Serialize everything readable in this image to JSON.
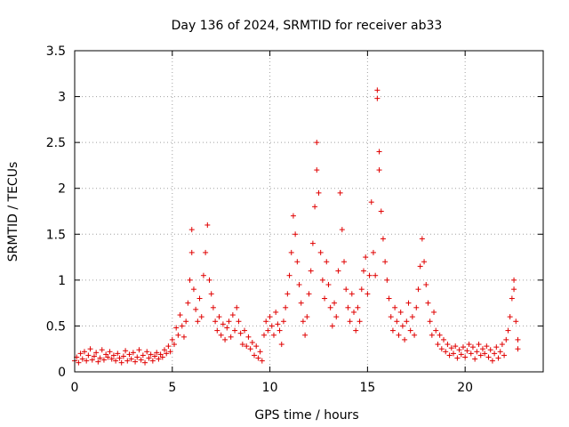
{
  "chart_data": {
    "type": "scatter",
    "title": "Day 136 of 2024, SRMTID for receiver ab33",
    "xlabel": "GPS time / hours",
    "ylabel": "SRMTID / TECUs",
    "xlim": [
      0,
      24
    ],
    "ylim": [
      0,
      3.5
    ],
    "x_ticks": [
      0,
      5,
      10,
      15,
      20
    ],
    "x_tick_labels": [
      "0",
      "5",
      "10",
      "15",
      "20"
    ],
    "y_ticks": [
      0,
      0.5,
      1,
      1.5,
      2,
      2.5,
      3,
      3.5
    ],
    "y_tick_labels": [
      "0",
      "0.5",
      "1",
      "1.5",
      "2",
      "2.5",
      "3",
      "3.5"
    ],
    "grid": true,
    "marker": "plus",
    "color": "#e00000",
    "series": [
      {
        "name": "SRMTID",
        "points": [
          [
            0.0,
            0.12
          ],
          [
            0.1,
            0.16
          ],
          [
            0.2,
            0.1
          ],
          [
            0.3,
            0.2
          ],
          [
            0.4,
            0.14
          ],
          [
            0.5,
            0.22
          ],
          [
            0.6,
            0.12
          ],
          [
            0.7,
            0.18
          ],
          [
            0.8,
            0.25
          ],
          [
            0.9,
            0.13
          ],
          [
            1.0,
            0.17
          ],
          [
            1.1,
            0.21
          ],
          [
            1.2,
            0.11
          ],
          [
            1.3,
            0.15
          ],
          [
            1.4,
            0.24
          ],
          [
            1.5,
            0.13
          ],
          [
            1.6,
            0.19
          ],
          [
            1.7,
            0.16
          ],
          [
            1.8,
            0.22
          ],
          [
            1.9,
            0.14
          ],
          [
            2.0,
            0.18
          ],
          [
            2.1,
            0.12
          ],
          [
            2.2,
            0.2
          ],
          [
            2.3,
            0.15
          ],
          [
            2.4,
            0.1
          ],
          [
            2.5,
            0.17
          ],
          [
            2.6,
            0.23
          ],
          [
            2.7,
            0.12
          ],
          [
            2.8,
            0.19
          ],
          [
            2.9,
            0.14
          ],
          [
            3.0,
            0.21
          ],
          [
            3.1,
            0.11
          ],
          [
            3.2,
            0.16
          ],
          [
            3.3,
            0.24
          ],
          [
            3.4,
            0.13
          ],
          [
            3.5,
            0.18
          ],
          [
            3.6,
            0.1
          ],
          [
            3.7,
            0.22
          ],
          [
            3.8,
            0.15
          ],
          [
            3.9,
            0.19
          ],
          [
            4.0,
            0.12
          ],
          [
            4.1,
            0.17
          ],
          [
            4.2,
            0.21
          ],
          [
            4.3,
            0.14
          ],
          [
            4.4,
            0.19
          ],
          [
            4.5,
            0.16
          ],
          [
            4.6,
            0.24
          ],
          [
            4.7,
            0.2
          ],
          [
            4.8,
            0.28
          ],
          [
            4.9,
            0.22
          ],
          [
            5.0,
            0.35
          ],
          [
            5.1,
            0.3
          ],
          [
            5.2,
            0.48
          ],
          [
            5.3,
            0.4
          ],
          [
            5.4,
            0.62
          ],
          [
            5.5,
            0.5
          ],
          [
            5.6,
            0.38
          ],
          [
            5.7,
            0.55
          ],
          [
            5.8,
            0.75
          ],
          [
            5.9,
            1.0
          ],
          [
            6.0,
            1.55
          ],
          [
            6.0,
            1.3
          ],
          [
            6.1,
            0.9
          ],
          [
            6.2,
            0.68
          ],
          [
            6.3,
            0.55
          ],
          [
            6.4,
            0.8
          ],
          [
            6.5,
            0.6
          ],
          [
            6.6,
            1.05
          ],
          [
            6.7,
            1.3
          ],
          [
            6.8,
            1.6
          ],
          [
            6.9,
            1.0
          ],
          [
            7.0,
            0.85
          ],
          [
            7.1,
            0.7
          ],
          [
            7.2,
            0.55
          ],
          [
            7.3,
            0.45
          ],
          [
            7.4,
            0.6
          ],
          [
            7.5,
            0.4
          ],
          [
            7.6,
            0.52
          ],
          [
            7.7,
            0.35
          ],
          [
            7.8,
            0.48
          ],
          [
            7.9,
            0.55
          ],
          [
            8.0,
            0.38
          ],
          [
            8.1,
            0.62
          ],
          [
            8.2,
            0.45
          ],
          [
            8.3,
            0.7
          ],
          [
            8.4,
            0.55
          ],
          [
            8.5,
            0.42
          ],
          [
            8.6,
            0.3
          ],
          [
            8.7,
            0.45
          ],
          [
            8.8,
            0.28
          ],
          [
            8.9,
            0.38
          ],
          [
            9.0,
            0.25
          ],
          [
            9.1,
            0.32
          ],
          [
            9.2,
            0.18
          ],
          [
            9.3,
            0.28
          ],
          [
            9.4,
            0.15
          ],
          [
            9.5,
            0.22
          ],
          [
            9.6,
            0.12
          ],
          [
            9.7,
            0.4
          ],
          [
            9.8,
            0.55
          ],
          [
            9.9,
            0.45
          ],
          [
            10.0,
            0.6
          ],
          [
            10.1,
            0.5
          ],
          [
            10.2,
            0.4
          ],
          [
            10.3,
            0.65
          ],
          [
            10.4,
            0.52
          ],
          [
            10.5,
            0.45
          ],
          [
            10.6,
            0.3
          ],
          [
            10.7,
            0.55
          ],
          [
            10.8,
            0.7
          ],
          [
            10.9,
            0.85
          ],
          [
            11.0,
            1.05
          ],
          [
            11.1,
            1.3
          ],
          [
            11.2,
            1.7
          ],
          [
            11.3,
            1.5
          ],
          [
            11.4,
            1.2
          ],
          [
            11.5,
            0.95
          ],
          [
            11.6,
            0.75
          ],
          [
            11.7,
            0.55
          ],
          [
            11.8,
            0.4
          ],
          [
            11.9,
            0.6
          ],
          [
            12.0,
            0.85
          ],
          [
            12.1,
            1.1
          ],
          [
            12.2,
            1.4
          ],
          [
            12.3,
            1.8
          ],
          [
            12.4,
            2.5
          ],
          [
            12.4,
            2.2
          ],
          [
            12.5,
            1.95
          ],
          [
            12.6,
            1.3
          ],
          [
            12.7,
            1.0
          ],
          [
            12.8,
            0.8
          ],
          [
            12.9,
            1.2
          ],
          [
            13.0,
            0.95
          ],
          [
            13.1,
            0.7
          ],
          [
            13.2,
            0.5
          ],
          [
            13.3,
            0.75
          ],
          [
            13.4,
            0.6
          ],
          [
            13.5,
            1.1
          ],
          [
            13.6,
            1.95
          ],
          [
            13.7,
            1.55
          ],
          [
            13.8,
            1.2
          ],
          [
            13.9,
            0.9
          ],
          [
            14.0,
            0.7
          ],
          [
            14.1,
            0.55
          ],
          [
            14.2,
            0.85
          ],
          [
            14.3,
            0.65
          ],
          [
            14.4,
            0.45
          ],
          [
            14.5,
            0.7
          ],
          [
            14.6,
            0.55
          ],
          [
            14.7,
            0.9
          ],
          [
            14.8,
            1.1
          ],
          [
            14.9,
            1.25
          ],
          [
            15.0,
            0.85
          ],
          [
            15.1,
            1.05
          ],
          [
            15.2,
            1.85
          ],
          [
            15.3,
            1.3
          ],
          [
            15.4,
            1.05
          ],
          [
            15.5,
            3.07
          ],
          [
            15.5,
            2.98
          ],
          [
            15.6,
            2.4
          ],
          [
            15.6,
            2.2
          ],
          [
            15.7,
            1.75
          ],
          [
            15.8,
            1.45
          ],
          [
            15.9,
            1.2
          ],
          [
            16.0,
            1.0
          ],
          [
            16.1,
            0.8
          ],
          [
            16.2,
            0.6
          ],
          [
            16.3,
            0.45
          ],
          [
            16.4,
            0.7
          ],
          [
            16.5,
            0.55
          ],
          [
            16.6,
            0.4
          ],
          [
            16.7,
            0.65
          ],
          [
            16.8,
            0.5
          ],
          [
            16.9,
            0.35
          ],
          [
            17.0,
            0.55
          ],
          [
            17.1,
            0.75
          ],
          [
            17.2,
            0.45
          ],
          [
            17.3,
            0.6
          ],
          [
            17.4,
            0.4
          ],
          [
            17.5,
            0.7
          ],
          [
            17.6,
            0.9
          ],
          [
            17.7,
            1.15
          ],
          [
            17.8,
            1.45
          ],
          [
            17.9,
            1.2
          ],
          [
            18.0,
            0.95
          ],
          [
            18.1,
            0.75
          ],
          [
            18.2,
            0.55
          ],
          [
            18.3,
            0.4
          ],
          [
            18.4,
            0.65
          ],
          [
            18.5,
            0.45
          ],
          [
            18.6,
            0.3
          ],
          [
            18.7,
            0.4
          ],
          [
            18.8,
            0.25
          ],
          [
            18.9,
            0.35
          ],
          [
            19.0,
            0.22
          ],
          [
            19.1,
            0.3
          ],
          [
            19.2,
            0.18
          ],
          [
            19.3,
            0.26
          ],
          [
            19.4,
            0.2
          ],
          [
            19.5,
            0.28
          ],
          [
            19.6,
            0.15
          ],
          [
            19.7,
            0.24
          ],
          [
            19.8,
            0.19
          ],
          [
            19.9,
            0.27
          ],
          [
            20.0,
            0.16
          ],
          [
            20.1,
            0.23
          ],
          [
            20.2,
            0.3
          ],
          [
            20.3,
            0.2
          ],
          [
            20.4,
            0.27
          ],
          [
            20.5,
            0.14
          ],
          [
            20.6,
            0.22
          ],
          [
            20.7,
            0.3
          ],
          [
            20.8,
            0.18
          ],
          [
            20.9,
            0.25
          ],
          [
            21.0,
            0.2
          ],
          [
            21.1,
            0.28
          ],
          [
            21.2,
            0.16
          ],
          [
            21.3,
            0.24
          ],
          [
            21.4,
            0.12
          ],
          [
            21.5,
            0.2
          ],
          [
            21.6,
            0.27
          ],
          [
            21.7,
            0.15
          ],
          [
            21.8,
            0.22
          ],
          [
            21.9,
            0.3
          ],
          [
            22.0,
            0.18
          ],
          [
            22.1,
            0.35
          ],
          [
            22.2,
            0.45
          ],
          [
            22.3,
            0.6
          ],
          [
            22.4,
            0.8
          ],
          [
            22.5,
            1.0
          ],
          [
            22.5,
            0.9
          ],
          [
            22.6,
            0.55
          ],
          [
            22.7,
            0.35
          ],
          [
            22.7,
            0.25
          ]
        ]
      }
    ]
  }
}
